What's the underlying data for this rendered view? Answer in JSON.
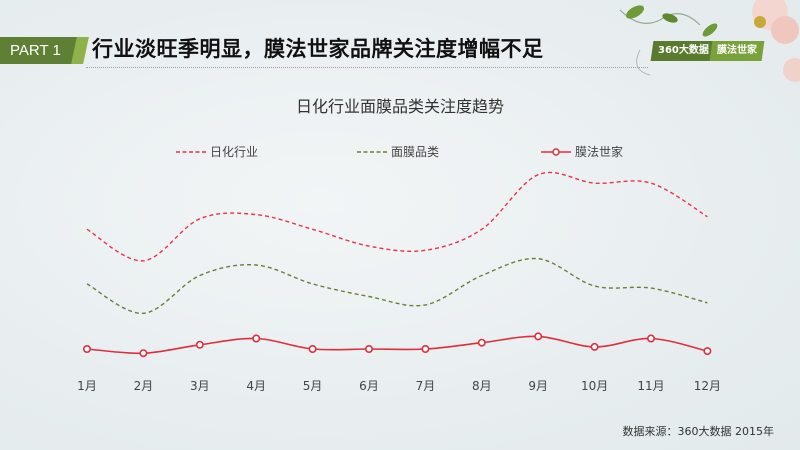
{
  "header": {
    "part_label": "PART 1",
    "headline": "行业淡旺季明显，膜法世家品牌关注度增幅不足",
    "badges": [
      "360大数据",
      "膜法世家"
    ]
  },
  "colors": {
    "brand_green": "#5f7f34",
    "brand_green_light": "#7aa23c",
    "series_industry": "#e8334a",
    "series_mask": "#6b7f3a",
    "series_brand": "#e02d3c"
  },
  "chart_data": {
    "type": "line",
    "title": "日化行业面膜品类关注度趋势",
    "xlabel": "",
    "ylabel": "",
    "y_axis_shown": false,
    "grid": false,
    "legend_position": "top",
    "categories": [
      "1月",
      "2月",
      "3月",
      "4月",
      "5月",
      "6月",
      "7月",
      "8月",
      "9月",
      "10月",
      "11月",
      "12月"
    ],
    "series": [
      {
        "name": "日化行业",
        "style": "dashed-smooth",
        "values": [
          67,
          52,
          72,
          74,
          67,
          59,
          57,
          67,
          93,
          89,
          89,
          73
        ]
      },
      {
        "name": "面膜品类",
        "style": "dashed-smooth",
        "values": [
          41,
          27,
          45,
          50,
          41,
          35,
          31,
          45,
          53,
          40,
          39,
          32
        ]
      },
      {
        "name": "膜法世家",
        "style": "solid-markers",
        "values": [
          10,
          8,
          12,
          15,
          10,
          10,
          10,
          13,
          16,
          11,
          15,
          9
        ]
      }
    ],
    "value_note": "relative index estimated from pixel position (no y-axis shown)"
  },
  "source": "数据来源：360大数据   2015年"
}
